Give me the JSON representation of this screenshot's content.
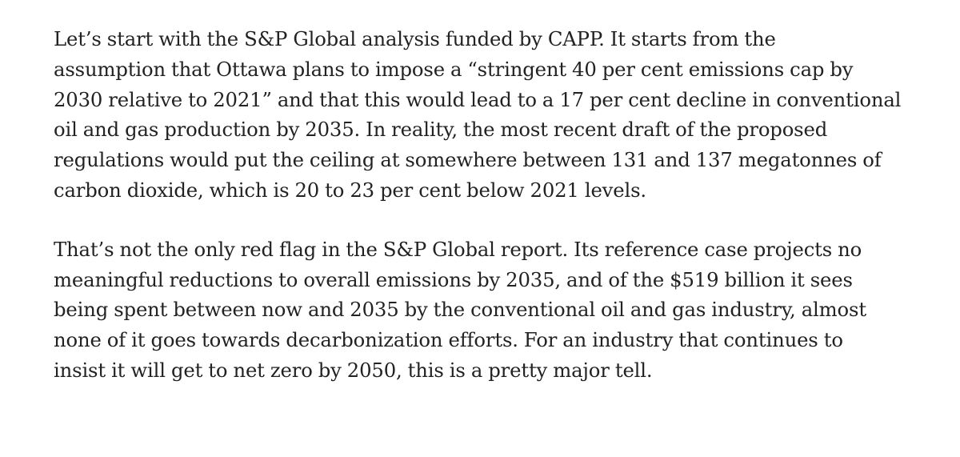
{
  "paragraphs": [
    {
      "lines": [
        "Let’s start with the S&P Global analysis funded by CAPP. It starts from the",
        "assumption that Ottawa plans to impose a “stringent 40 per cent emissions cap by",
        "2030 relative to 2021” and that this would lead to a 17 per cent decline in conventional",
        "oil and gas production by 2035. In reality, the most recent draft of the proposed",
        "regulations would put the ceiling at somewhere between 131 and 137 megatonnes of",
        "carbon dioxide, which is 20 to 23 per cent below 2021 levels."
      ]
    },
    {
      "lines": [
        "That’s not the only red flag in the S&P Global report. Its reference case projects no",
        "meaningful reductions to overall emissions by 2035, and of the $519 billion it sees",
        "being spent between now and 2035 by the conventional oil and gas industry, almost",
        "none of it goes towards decarbonization efforts. For an industry that continues to",
        "insist it will get to net zero by 2050, this is a pretty major tell."
      ]
    }
  ]
}
